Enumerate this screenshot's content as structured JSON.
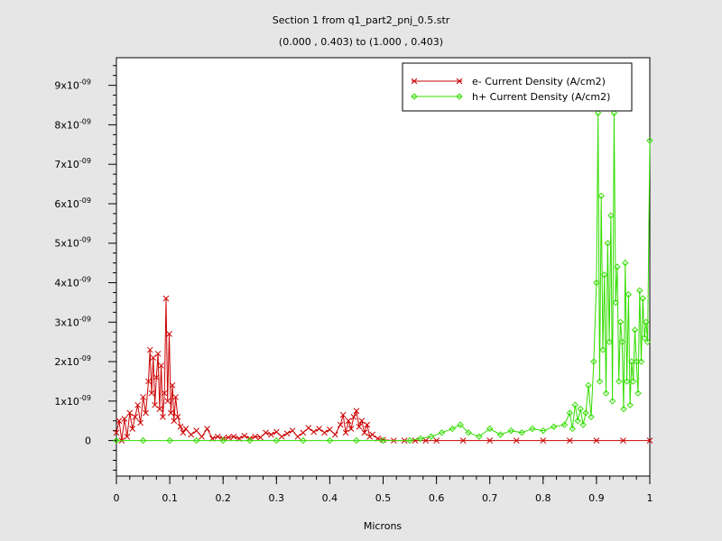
{
  "chart_data": {
    "type": "line",
    "title": "Section 1 from q1_part2_pnj_0.5.str",
    "subtitle": "(0.000 , 0.403) to (1.000 , 0.403)",
    "xlabel": "Microns",
    "ylabel": "",
    "xlim": [
      0,
      1
    ],
    "ylim": [
      -9e-10,
      9.7e-09
    ],
    "x_ticks": [
      {
        "value": 0,
        "label": "0"
      },
      {
        "value": 0.1,
        "label": "0.1"
      },
      {
        "value": 0.2,
        "label": "0.2"
      },
      {
        "value": 0.3,
        "label": "0.3"
      },
      {
        "value": 0.4,
        "label": "0.4"
      },
      {
        "value": 0.5,
        "label": "0.5"
      },
      {
        "value": 0.6,
        "label": "0.6"
      },
      {
        "value": 0.7,
        "label": "0.7"
      },
      {
        "value": 0.8,
        "label": "0.8"
      },
      {
        "value": 0.9,
        "label": "0.9"
      },
      {
        "value": 1.0,
        "label": "1"
      }
    ],
    "y_ticks": [
      {
        "value": 0,
        "label": "0"
      },
      {
        "value": 1e-09,
        "label": "1x10-09"
      },
      {
        "value": 2e-09,
        "label": "2x10-09"
      },
      {
        "value": 3e-09,
        "label": "3x10-09"
      },
      {
        "value": 4e-09,
        "label": "4x10-09"
      },
      {
        "value": 5e-09,
        "label": "5x10-09"
      },
      {
        "value": 6e-09,
        "label": "6x10-09"
      },
      {
        "value": 7e-09,
        "label": "7x10-09"
      },
      {
        "value": 8e-09,
        "label": "8x10-09"
      },
      {
        "value": 9e-09,
        "label": "9x10-09"
      }
    ],
    "grid": false,
    "legend_position": "top-right",
    "series": [
      {
        "name": "e- Current Density (A/cm2)",
        "color": "#cc0000",
        "marker": "x",
        "x": [
          0.0,
          0.005,
          0.01,
          0.015,
          0.02,
          0.025,
          0.03,
          0.035,
          0.04,
          0.045,
          0.05,
          0.055,
          0.06,
          0.063,
          0.066,
          0.069,
          0.072,
          0.075,
          0.078,
          0.081,
          0.084,
          0.087,
          0.09,
          0.093,
          0.096,
          0.099,
          0.102,
          0.105,
          0.108,
          0.111,
          0.115,
          0.12,
          0.125,
          0.13,
          0.14,
          0.15,
          0.16,
          0.17,
          0.18,
          0.19,
          0.2,
          0.21,
          0.22,
          0.23,
          0.24,
          0.25,
          0.26,
          0.27,
          0.28,
          0.29,
          0.3,
          0.31,
          0.32,
          0.33,
          0.34,
          0.35,
          0.36,
          0.37,
          0.38,
          0.39,
          0.4,
          0.41,
          0.42,
          0.425,
          0.43,
          0.435,
          0.44,
          0.445,
          0.45,
          0.455,
          0.46,
          0.465,
          0.47,
          0.475,
          0.48,
          0.49,
          0.5,
          0.52,
          0.54,
          0.56,
          0.58,
          0.6,
          0.65,
          0.7,
          0.75,
          0.8,
          0.85,
          0.9,
          0.95,
          1.0
        ],
        "y": [
          2e-10,
          5e-10,
          0.0,
          5.5e-10,
          1e-10,
          7e-10,
          3e-10,
          6e-10,
          9e-10,
          4.5e-10,
          1.1e-09,
          7e-10,
          1.5e-09,
          2.3e-09,
          1.2e-09,
          2.1e-09,
          9e-10,
          1.6e-09,
          2.2e-09,
          8e-10,
          1.9e-09,
          6e-10,
          1.2e-09,
          3.6e-09,
          1e-09,
          2.7e-09,
          7e-10,
          1.4e-09,
          5e-10,
          1.1e-09,
          6e-10,
          3.5e-10,
          2e-10,
          3e-10,
          1.5e-10,
          2.5e-10,
          1e-10,
          3e-10,
          5e-11,
          1e-10,
          5e-11,
          8e-11,
          1e-10,
          5e-11,
          1.2e-10,
          5e-11,
          1e-10,
          8e-11,
          2e-10,
          1.5e-10,
          2.2e-10,
          1e-10,
          1.8e-10,
          2.5e-10,
          1e-10,
          2e-10,
          3.2e-10,
          2.2e-10,
          3e-10,
          2e-10,
          2.8e-10,
          1.5e-10,
          4e-10,
          6.5e-10,
          2e-10,
          5e-10,
          3e-10,
          6e-10,
          7.5e-10,
          3.5e-10,
          5e-10,
          2e-10,
          4e-10,
          1e-10,
          1.5e-10,
          5e-11,
          2e-11,
          0.0,
          0.0,
          0.0,
          0.0,
          0.0,
          0.0,
          0.0,
          0.0,
          0.0,
          0.0,
          0.0,
          0.0,
          0.0
        ]
      },
      {
        "name": "h+ Current Density (A/cm2)",
        "color": "#33dd00",
        "marker": "diamond",
        "x": [
          0.0,
          0.05,
          0.1,
          0.15,
          0.2,
          0.25,
          0.3,
          0.35,
          0.4,
          0.45,
          0.5,
          0.55,
          0.57,
          0.59,
          0.61,
          0.63,
          0.645,
          0.66,
          0.68,
          0.7,
          0.72,
          0.74,
          0.76,
          0.78,
          0.8,
          0.82,
          0.84,
          0.85,
          0.855,
          0.86,
          0.865,
          0.87,
          0.875,
          0.88,
          0.885,
          0.89,
          0.895,
          0.9,
          0.903,
          0.906,
          0.909,
          0.912,
          0.915,
          0.918,
          0.921,
          0.924,
          0.927,
          0.93,
          0.933,
          0.936,
          0.939,
          0.942,
          0.945,
          0.948,
          0.951,
          0.954,
          0.957,
          0.96,
          0.963,
          0.966,
          0.969,
          0.972,
          0.975,
          0.978,
          0.981,
          0.984,
          0.987,
          0.99,
          0.993,
          0.996,
          1.0
        ],
        "y": [
          0.0,
          0.0,
          0.0,
          0.0,
          0.0,
          0.0,
          0.0,
          0.0,
          0.0,
          0.0,
          0.0,
          0.0,
          5e-11,
          1e-10,
          2e-10,
          3e-10,
          4e-10,
          2e-10,
          1e-10,
          3e-10,
          1.5e-10,
          2.5e-10,
          2e-10,
          3e-10,
          2.5e-10,
          3.5e-10,
          4e-10,
          7e-10,
          3e-10,
          9e-10,
          5e-10,
          8e-10,
          4e-10,
          7e-10,
          1.4e-09,
          6e-10,
          2e-09,
          4e-09,
          8.3e-09,
          1.5e-09,
          6.2e-09,
          2.3e-09,
          4.2e-09,
          1.2e-09,
          5e-09,
          2.5e-09,
          5.7e-09,
          1e-09,
          8.3e-09,
          3.5e-09,
          4.4e-09,
          1.5e-09,
          3e-09,
          2.5e-09,
          8e-10,
          4.5e-09,
          1.5e-09,
          3.7e-09,
          9e-10,
          2e-09,
          1.5e-09,
          2.8e-09,
          2e-09,
          1.2e-09,
          3.8e-09,
          2e-09,
          3.6e-09,
          2.6e-09,
          3e-09,
          2.5e-09,
          7.6e-09
        ]
      }
    ]
  }
}
